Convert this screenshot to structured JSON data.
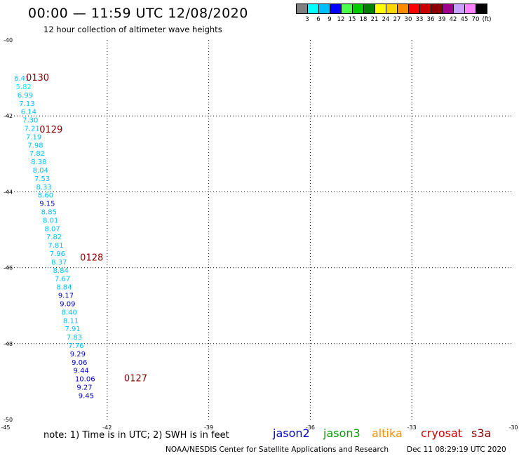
{
  "title": "00:00 — 11:59 UTC 12/08/2020",
  "subtitle": "12 hour collection of altimeter wave heights",
  "legend": {
    "colors": [
      "#808080",
      "#00ffff",
      "#00bfff",
      "#0000ff",
      "#4dff4d",
      "#00cc00",
      "#008000",
      "#ffff00",
      "#ffd700",
      "#ff8c00",
      "#ff0000",
      "#cc0000",
      "#8b0000",
      "#a0008b",
      "#c8a0ff",
      "#ff80ff",
      "#000000"
    ],
    "labels": [
      "3",
      "6",
      "9",
      "12",
      "15",
      "18",
      "21",
      "24",
      "27",
      "30",
      "33",
      "36",
      "39",
      "42",
      "45",
      "70"
    ],
    "unit": "(ft)"
  },
  "chart_data": {
    "type": "scatter",
    "xlim": [
      -45,
      -30
    ],
    "ylim": [
      -50,
      -40
    ],
    "x_ticks": [
      "-45",
      "-42",
      "-39",
      "-36",
      "-33",
      "-30"
    ],
    "y_ticks": [
      "-40",
      "-42",
      "-44",
      "-46",
      "-48",
      "-50"
    ],
    "grid": true,
    "points": [
      {
        "x": -44.75,
        "y": -41.0,
        "v": "6.41",
        "c": "#00bfff"
      },
      {
        "x": -44.7,
        "y": -41.22,
        "v": "5.82",
        "c": "#00ffff"
      },
      {
        "x": -44.65,
        "y": -41.44,
        "v": "6.99",
        "c": "#00bfff"
      },
      {
        "x": -44.6,
        "y": -41.66,
        "v": "7.13",
        "c": "#00bfff"
      },
      {
        "x": -44.55,
        "y": -41.88,
        "v": "6.14",
        "c": "#00bfff"
      },
      {
        "x": -44.5,
        "y": -42.1,
        "v": "7.30",
        "c": "#00bfff"
      },
      {
        "x": -44.45,
        "y": -42.32,
        "v": "7.21",
        "c": "#00bfff"
      },
      {
        "x": -44.4,
        "y": -42.54,
        "v": "7.19",
        "c": "#00bfff"
      },
      {
        "x": -44.35,
        "y": -42.76,
        "v": "7.98",
        "c": "#00bfff"
      },
      {
        "x": -44.3,
        "y": -42.98,
        "v": "7.82",
        "c": "#00bfff"
      },
      {
        "x": -44.25,
        "y": -43.2,
        "v": "8.38",
        "c": "#00bfff"
      },
      {
        "x": -44.2,
        "y": -43.42,
        "v": "8.04",
        "c": "#00bfff"
      },
      {
        "x": -44.15,
        "y": -43.64,
        "v": "7.53",
        "c": "#00bfff"
      },
      {
        "x": -44.1,
        "y": -43.86,
        "v": "8.33",
        "c": "#00bfff"
      },
      {
        "x": -44.05,
        "y": -44.08,
        "v": "8.60",
        "c": "#00bfff"
      },
      {
        "x": -44.0,
        "y": -44.3,
        "v": "9.15",
        "c": "#0000cc"
      },
      {
        "x": -43.95,
        "y": -44.52,
        "v": "8.85",
        "c": "#00bfff"
      },
      {
        "x": -43.9,
        "y": -44.74,
        "v": "8.01",
        "c": "#00bfff"
      },
      {
        "x": -43.85,
        "y": -44.96,
        "v": "8.07",
        "c": "#00bfff"
      },
      {
        "x": -43.8,
        "y": -45.18,
        "v": "7.82",
        "c": "#00bfff"
      },
      {
        "x": -43.75,
        "y": -45.4,
        "v": "7.81",
        "c": "#00bfff"
      },
      {
        "x": -43.7,
        "y": -45.62,
        "v": "7.96",
        "c": "#00bfff"
      },
      {
        "x": -43.65,
        "y": -45.84,
        "v": "8.37",
        "c": "#00bfff"
      },
      {
        "x": -43.6,
        "y": -46.06,
        "v": "8.84",
        "c": "#00bfff"
      },
      {
        "x": -43.55,
        "y": -46.28,
        "v": "7.67",
        "c": "#00bfff"
      },
      {
        "x": -43.5,
        "y": -46.5,
        "v": "8.84",
        "c": "#00bfff"
      },
      {
        "x": -43.45,
        "y": -46.72,
        "v": "9.17",
        "c": "#0000cc"
      },
      {
        "x": -43.4,
        "y": -46.94,
        "v": "9.09",
        "c": "#0000cc"
      },
      {
        "x": -43.35,
        "y": -47.16,
        "v": "8.40",
        "c": "#00bfff"
      },
      {
        "x": -43.3,
        "y": -47.38,
        "v": "8.11",
        "c": "#00bfff"
      },
      {
        "x": -43.25,
        "y": -47.6,
        "v": "7.91",
        "c": "#00bfff"
      },
      {
        "x": -43.2,
        "y": -47.82,
        "v": "7.83",
        "c": "#00bfff"
      },
      {
        "x": -43.15,
        "y": -48.04,
        "v": "7.76",
        "c": "#00bfff"
      },
      {
        "x": -43.1,
        "y": -48.26,
        "v": "9.29",
        "c": "#0000cc"
      },
      {
        "x": -43.05,
        "y": -48.48,
        "v": "9.06",
        "c": "#0000cc"
      },
      {
        "x": -43.0,
        "y": -48.7,
        "v": "9.44",
        "c": "#0000cc"
      },
      {
        "x": -42.95,
        "y": -48.92,
        "v": "10.06",
        "c": "#0000cc"
      },
      {
        "x": -42.9,
        "y": -49.14,
        "v": "9.27",
        "c": "#0000cc"
      },
      {
        "x": -42.85,
        "y": -49.36,
        "v": "9.45",
        "c": "#0000cc"
      }
    ],
    "time_labels": [
      {
        "x": -44.4,
        "y": -40.98,
        "t": "0130"
      },
      {
        "x": -44.0,
        "y": -42.35,
        "t": "0129"
      },
      {
        "x": -42.8,
        "y": -45.72,
        "t": "0128"
      },
      {
        "x": -41.5,
        "y": -48.9,
        "t": "0127"
      }
    ]
  },
  "note": "note: 1) Time is in UTC; 2) SWH is in feet",
  "satellites": [
    {
      "name": "jason2",
      "color": "#0000cc"
    },
    {
      "name": "jason3",
      "color": "#00a000"
    },
    {
      "name": "altika",
      "color": "#ff8c00"
    },
    {
      "name": "cryosat",
      "color": "#cc0000"
    },
    {
      "name": "s3a",
      "color": "#8b0000"
    }
  ],
  "footer": "NOAA/NESDIS Center for Satellite Applications and Research",
  "footer_time": "Dec 11 08:29:19 UTC 2020"
}
